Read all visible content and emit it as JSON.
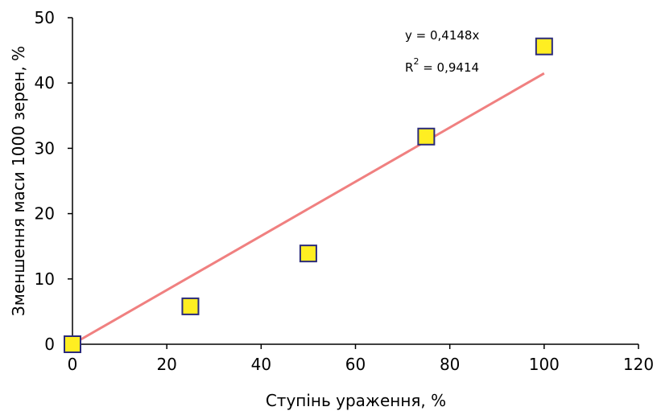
{
  "chart_data": {
    "type": "scatter",
    "xlabel": "Ступінь ураження, %",
    "ylabel": "Зменшення маси 1000 зерен, %",
    "xlim": [
      0,
      120
    ],
    "ylim": [
      0,
      50
    ],
    "x_ticks": [
      "0",
      "20",
      "40",
      "60",
      "80",
      "100",
      "120"
    ],
    "y_ticks": [
      "0",
      "10",
      "20",
      "30",
      "40",
      "50"
    ],
    "grid": false,
    "series": [
      {
        "x": [
          0,
          25,
          50,
          75,
          100
        ],
        "y": [
          0,
          5.8,
          13.9,
          31.8,
          45.6
        ],
        "marker": "square",
        "fill_color": "#ffee22",
        "edge_color": "#2b2b7a"
      }
    ],
    "trendline": {
      "slope": 0.4148,
      "x_range": [
        0,
        100
      ],
      "color": "#f08080",
      "equation": "y = 0,4148x",
      "r2_prefix": "R",
      "r2_exp": "2",
      "r2_value": " = 0,9414"
    }
  }
}
